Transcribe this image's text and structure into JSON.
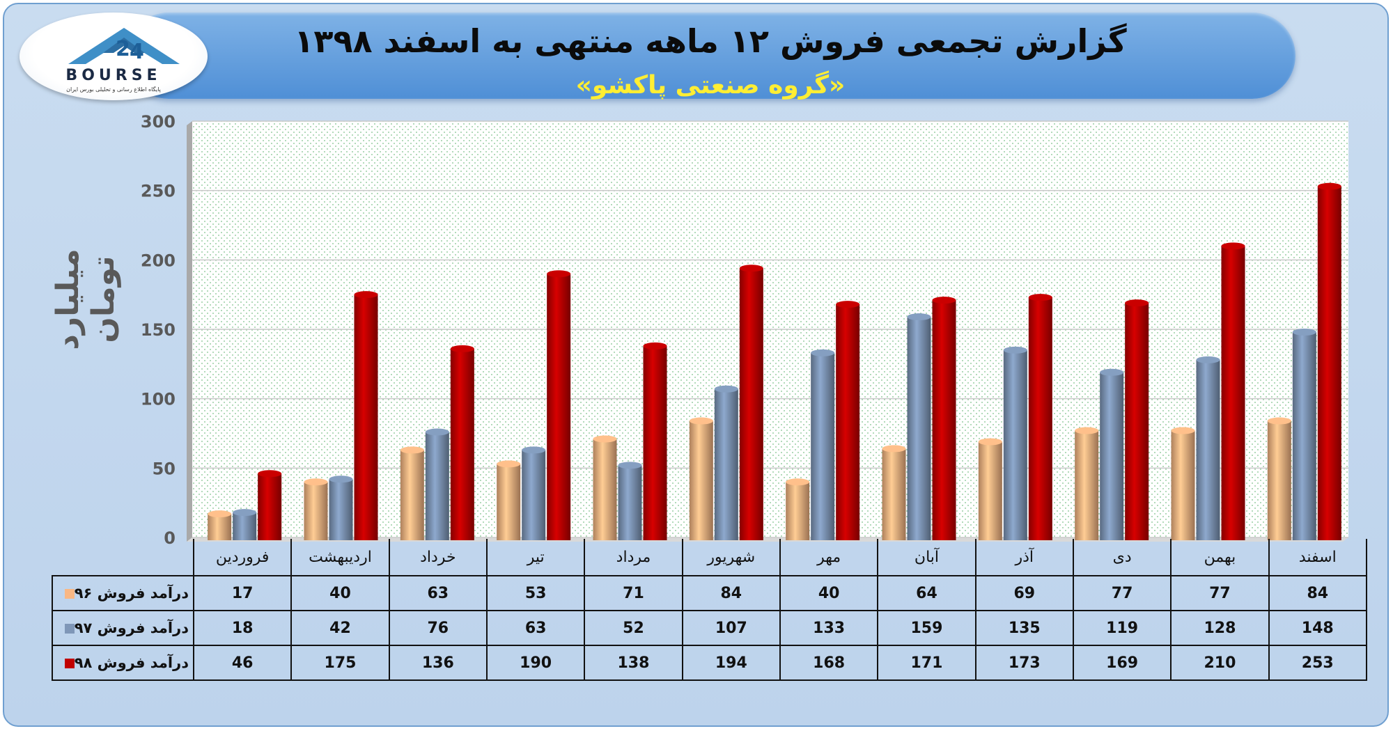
{
  "header": {
    "title": "گزارش تجمعی فروش ۱۲ ماهه منتهی به اسفند ۱۳۹۸",
    "subtitle": "«گروه صنعتی پاکشو»"
  },
  "logo": {
    "text": "BOURSE",
    "caption": "پایگاه اطلاع رسانی و تحلیلی بورس ایران"
  },
  "chart_data": {
    "type": "bar",
    "ylabel": "میلیارد تومان",
    "ylim": [
      0,
      300
    ],
    "yticks": [
      0,
      50,
      100,
      150,
      200,
      250,
      300
    ],
    "categories": [
      "فروردین",
      "اردیبهشت",
      "خرداد",
      "تیر",
      "مرداد",
      "شهریور",
      "مهر",
      "آبان",
      "آذر",
      "دی",
      "بهمن",
      "اسفند"
    ],
    "series": [
      {
        "name": "درآمد فروش ۹۶",
        "color": "#f9b784",
        "values": [
          17,
          40,
          63,
          53,
          71,
          84,
          40,
          64,
          69,
          77,
          77,
          84
        ]
      },
      {
        "name": "درآمد فروش ۹۷",
        "color": "#7f97b8",
        "values": [
          18,
          42,
          76,
          63,
          52,
          107,
          133,
          159,
          135,
          119,
          128,
          148
        ]
      },
      {
        "name": "درآمد فروش ۹۸",
        "color": "#c00000",
        "values": [
          46,
          175,
          136,
          190,
          138,
          194,
          168,
          171,
          173,
          169,
          210,
          253
        ]
      }
    ],
    "grid": true,
    "legend": "data-table"
  }
}
